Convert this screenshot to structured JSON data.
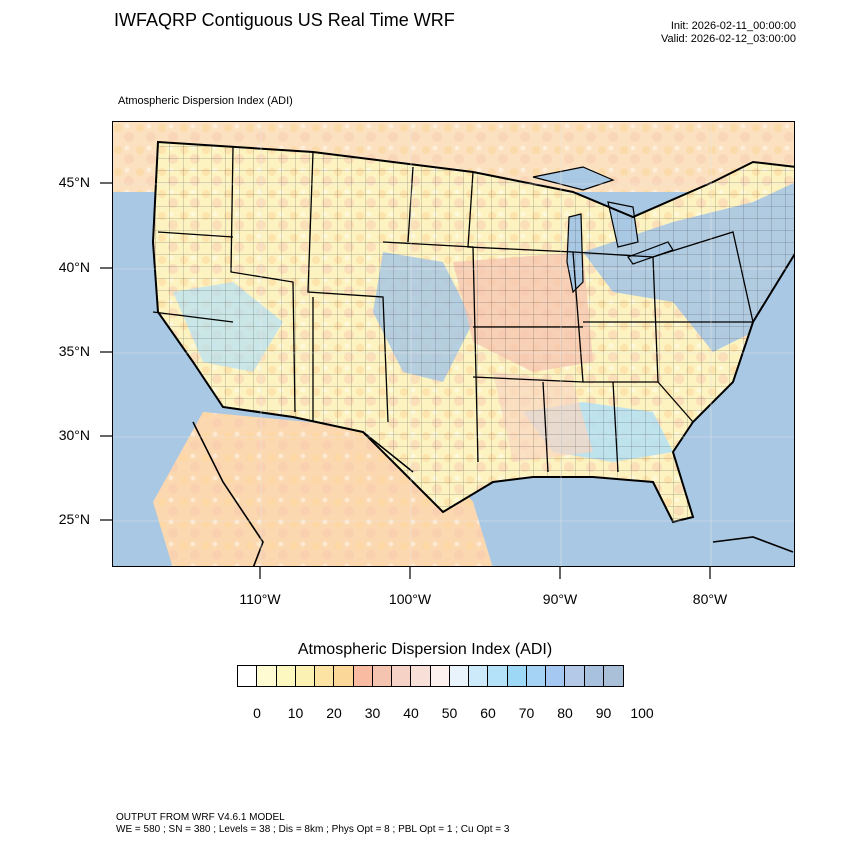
{
  "header": {
    "title": "IWFAQRP Contiguous US Real Time WRF",
    "init": "Init: 2026-02-11_00:00:00",
    "valid": "Valid: 2026-02-12_03:00:00"
  },
  "map": {
    "field_label": "Atmospheric Dispersion Index   (ADI)",
    "lat_labels": [
      "45°N",
      "40°N",
      "35°N",
      "30°N",
      "25°N"
    ],
    "lon_labels": [
      "110°W",
      "100°W",
      "90°W",
      "80°W"
    ],
    "lat_values": [
      45,
      40,
      35,
      30,
      25
    ],
    "lon_values": [
      -110,
      -100,
      -90,
      -80
    ],
    "colors": {
      "ocean": "#a9c8e4",
      "land_base": "#fdf6c2",
      "low": "#fcd79a",
      "mid": "#f5c4b0",
      "high": "#a9c8e4",
      "veryhigh": "#b3dff5"
    }
  },
  "colorbar": {
    "title": "Atmospheric Dispersion Index  (ADI)",
    "labels": [
      "0",
      "10",
      "20",
      "30",
      "40",
      "50",
      "60",
      "70",
      "80",
      "90",
      "100"
    ],
    "colors": [
      "#ffffff",
      "#fefad2",
      "#fcf8c0",
      "#fbf1b2",
      "#fce3a3",
      "#fcd79a",
      "#f9bba2",
      "#f5c4b0",
      "#f6d1c6",
      "#f8e0d9",
      "#fdf1ef",
      "#e8f3fb",
      "#cdeafa",
      "#b3e2f9",
      "#9dd8f6",
      "#a5d3f5",
      "#a5c8f2",
      "#b4c9e8",
      "#a7c1de",
      "#a9c0d8"
    ]
  },
  "footer": {
    "line1": "OUTPUT FROM WRF V4.6.1 MODEL",
    "line2": "WE = 580 ; SN = 380 ; Levels = 38 ; Dis = 8km ; Phys Opt = 8 ; PBL Opt = 1 ; Cu Opt = 3"
  }
}
